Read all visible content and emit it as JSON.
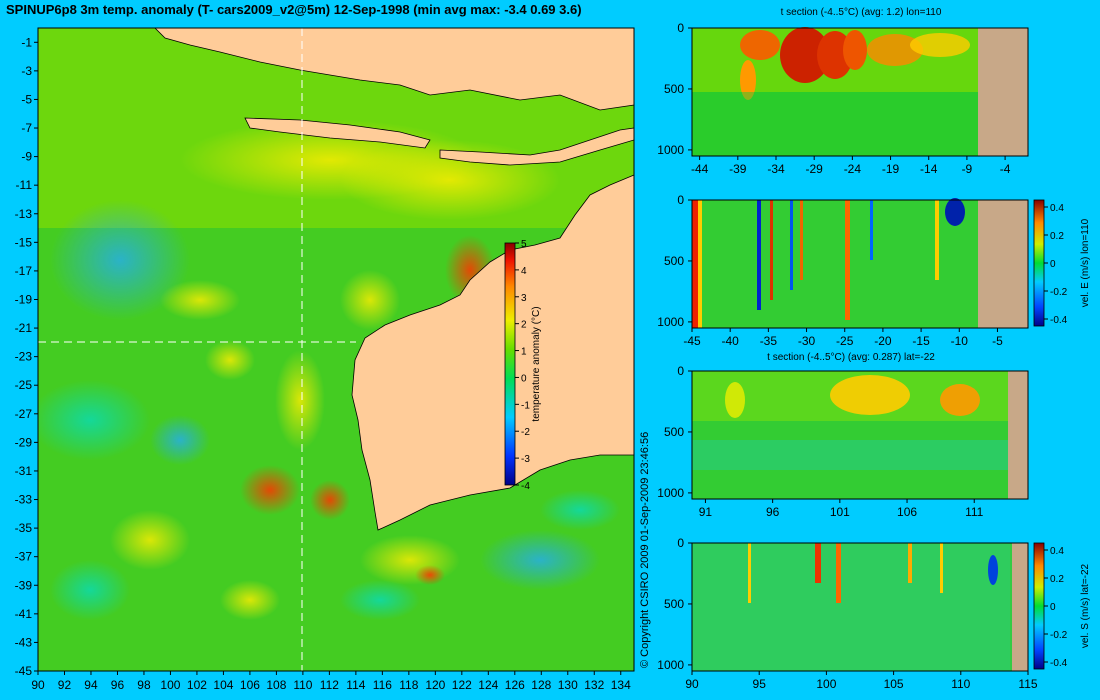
{
  "main_title": "SPINUP6p8 3m temp. anomaly (T- cars2009_v2@5m) 12-Sep-1998 (min avg max: -3.4 0.69 3.6)",
  "copyright": "© Copyright CSIRO 2009   01-Sep-2009 23:46:56",
  "colors": {
    "background": "#00ccff",
    "land": "#ffcc99",
    "section_land": "#c8a888",
    "coastline": "#000000",
    "section_line": "#ffffff"
  },
  "chart_data": [
    {
      "type": "heatmap",
      "name_key": "map",
      "title": "",
      "x_ticks": [
        "90",
        "92",
        "94",
        "96",
        "98",
        "100",
        "102",
        "104",
        "106",
        "108",
        "110",
        "112",
        "114",
        "116",
        "118",
        "120",
        "122",
        "124",
        "126",
        "128",
        "130",
        "132",
        "134"
      ],
      "y_ticks": [
        "-1",
        "-3",
        "-5",
        "-7",
        "-9",
        "-11",
        "-13",
        "-15",
        "-17",
        "-19",
        "-21",
        "-23",
        "-25",
        "-27",
        "-29",
        "-31",
        "-33",
        "-35",
        "-37",
        "-39",
        "-41",
        "-43",
        "-45"
      ],
      "xlim": [
        90,
        135
      ],
      "ylim": [
        -45,
        0
      ],
      "section_lon": 110,
      "section_lat": -22,
      "colorbar": {
        "label": "temperature anomaly (°C)",
        "ticks": [
          "5",
          "4",
          "3",
          "2",
          "1",
          "0",
          "-1",
          "-2",
          "-3",
          "-4"
        ],
        "range": [
          -4,
          5
        ]
      }
    },
    {
      "type": "heatmap",
      "name_key": "tsec_lon",
      "title": "t section (-4..5°C) (avg: 1.2) lon=110",
      "x_ticks": [
        "-44",
        "-39",
        "-34",
        "-29",
        "-24",
        "-19",
        "-14",
        "-9",
        "-4"
      ],
      "y_ticks": [
        "0",
        "500",
        "1000"
      ],
      "xlim": [
        -45,
        -1
      ],
      "ylim": [
        0,
        1050
      ]
    },
    {
      "type": "heatmap",
      "name_key": "vsec_lon",
      "title": "",
      "x_ticks": [
        "-45",
        "-40",
        "-35",
        "-30",
        "-25",
        "-20",
        "-15",
        "-10",
        "-5"
      ],
      "y_ticks": [
        "0",
        "500",
        "1000"
      ],
      "xlim": [
        -45,
        -1
      ],
      "ylim": [
        0,
        1050
      ],
      "colorbar": {
        "label": "vel. E (m/s) lon=110",
        "ticks": [
          "0.4",
          "0.2",
          "0",
          "-0.2",
          "-0.4"
        ],
        "range": [
          -0.45,
          0.45
        ]
      }
    },
    {
      "type": "heatmap",
      "name_key": "tsec_lat",
      "title": "t section (-4..5°C) (avg: 0.287) lat=-22",
      "x_ticks": [
        "91",
        "96",
        "101",
        "106",
        "111"
      ],
      "y_ticks": [
        "0",
        "500",
        "1000"
      ],
      "xlim": [
        90,
        115
      ],
      "ylim": [
        0,
        1050
      ]
    },
    {
      "type": "heatmap",
      "name_key": "vsec_lat",
      "title": "",
      "x_ticks": [
        "90",
        "95",
        "100",
        "105",
        "110",
        "115"
      ],
      "y_ticks": [
        "0",
        "500",
        "1000"
      ],
      "xlim": [
        90,
        115
      ],
      "ylim": [
        0,
        1050
      ],
      "colorbar": {
        "label": "vel. S (m/s) lat=-22",
        "ticks": [
          "0.4",
          "0.2",
          "0",
          "-0.2",
          "-0.4"
        ],
        "range": [
          -0.45,
          0.45
        ]
      }
    }
  ]
}
